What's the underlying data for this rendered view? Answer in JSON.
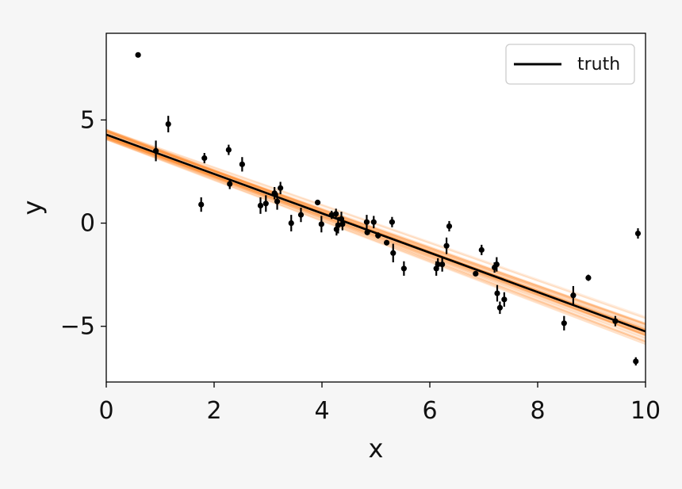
{
  "chart_data": {
    "type": "scatter",
    "title": "",
    "xlabel": "x",
    "ylabel": "y",
    "xlim": [
      0,
      10
    ],
    "ylim": [
      -7.7,
      9.2
    ],
    "x_ticks": [
      0,
      2,
      4,
      6,
      8,
      10
    ],
    "y_ticks": [
      -5,
      0,
      5
    ],
    "x_tick_labels": [
      "0",
      "2",
      "4",
      "6",
      "8",
      "10"
    ],
    "y_tick_labels": [
      "−5",
      "0",
      "5"
    ],
    "grid": false,
    "legend": {
      "position": "top-right",
      "entries": [
        "truth"
      ]
    },
    "colors": {
      "points": "#000000",
      "truth": "#000000",
      "samples": "#ff7f0e"
    },
    "truth_line": {
      "name": "truth",
      "slope": -0.954,
      "intercept": 4.29
    },
    "posterior_samples": {
      "count": 60,
      "slope_mean": -0.95,
      "slope_spread": 0.05,
      "intercept_mean": 4.29,
      "intercept_spread": 0.25
    },
    "points": [
      {
        "x": 0.59,
        "y": 8.15,
        "yerr": 0.1
      },
      {
        "x": 0.92,
        "y": 3.5,
        "yerr": 0.5
      },
      {
        "x": 1.15,
        "y": 4.8,
        "yerr": 0.4
      },
      {
        "x": 1.76,
        "y": 0.9,
        "yerr": 0.35
      },
      {
        "x": 1.82,
        "y": 3.15,
        "yerr": 0.25
      },
      {
        "x": 2.27,
        "y": 3.55,
        "yerr": 0.25
      },
      {
        "x": 2.29,
        "y": 1.9,
        "yerr": 0.25
      },
      {
        "x": 2.52,
        "y": 2.85,
        "yerr": 0.35
      },
      {
        "x": 2.86,
        "y": 0.85,
        "yerr": 0.4
      },
      {
        "x": 2.96,
        "y": 0.95,
        "yerr": 0.4
      },
      {
        "x": 3.12,
        "y": 1.45,
        "yerr": 0.3
      },
      {
        "x": 3.17,
        "y": 1.05,
        "yerr": 0.4
      },
      {
        "x": 3.23,
        "y": 1.7,
        "yerr": 0.3
      },
      {
        "x": 3.43,
        "y": 0.0,
        "yerr": 0.4
      },
      {
        "x": 3.61,
        "y": 0.4,
        "yerr": 0.35
      },
      {
        "x": 3.92,
        "y": 1.0,
        "yerr": 0.1
      },
      {
        "x": 3.99,
        "y": -0.05,
        "yerr": 0.4
      },
      {
        "x": 4.18,
        "y": 0.4,
        "yerr": 0.2
      },
      {
        "x": 4.26,
        "y": 0.45,
        "yerr": 0.25
      },
      {
        "x": 4.27,
        "y": -0.3,
        "yerr": 0.3
      },
      {
        "x": 4.3,
        "y": -0.1,
        "yerr": 0.4
      },
      {
        "x": 4.36,
        "y": 0.2,
        "yerr": 0.35
      },
      {
        "x": 4.38,
        "y": -0.05,
        "yerr": 0.3
      },
      {
        "x": 4.83,
        "y": 0.05,
        "yerr": 0.35
      },
      {
        "x": 4.84,
        "y": -0.45,
        "yerr": 0.1
      },
      {
        "x": 4.96,
        "y": 0.05,
        "yerr": 0.3
      },
      {
        "x": 5.04,
        "y": -0.6,
        "yerr": 0.15
      },
      {
        "x": 5.2,
        "y": -0.95,
        "yerr": 0.1
      },
      {
        "x": 5.3,
        "y": 0.05,
        "yerr": 0.25
      },
      {
        "x": 5.32,
        "y": -1.45,
        "yerr": 0.45
      },
      {
        "x": 5.52,
        "y": -2.2,
        "yerr": 0.35
      },
      {
        "x": 6.12,
        "y": -2.2,
        "yerr": 0.35
      },
      {
        "x": 6.15,
        "y": -2.0,
        "yerr": 0.3
      },
      {
        "x": 6.23,
        "y": -2.0,
        "yerr": 0.35
      },
      {
        "x": 6.31,
        "y": -1.1,
        "yerr": 0.4
      },
      {
        "x": 6.36,
        "y": -0.15,
        "yerr": 0.25
      },
      {
        "x": 6.85,
        "y": -2.45,
        "yerr": 0.1
      },
      {
        "x": 6.96,
        "y": -1.3,
        "yerr": 0.25
      },
      {
        "x": 7.2,
        "y": -2.15,
        "yerr": 0.25
      },
      {
        "x": 7.24,
        "y": -2.0,
        "yerr": 0.35
      },
      {
        "x": 7.25,
        "y": -3.4,
        "yerr": 0.4
      },
      {
        "x": 7.3,
        "y": -4.1,
        "yerr": 0.3
      },
      {
        "x": 7.38,
        "y": -3.7,
        "yerr": 0.35
      },
      {
        "x": 8.49,
        "y": -4.85,
        "yerr": 0.35
      },
      {
        "x": 8.66,
        "y": -3.5,
        "yerr": 0.45
      },
      {
        "x": 8.94,
        "y": -2.65,
        "yerr": 0.15
      },
      {
        "x": 9.44,
        "y": -4.75,
        "yerr": 0.25
      },
      {
        "x": 9.82,
        "y": -6.7,
        "yerr": 0.2
      },
      {
        "x": 9.86,
        "y": -0.5,
        "yerr": 0.25
      }
    ]
  }
}
